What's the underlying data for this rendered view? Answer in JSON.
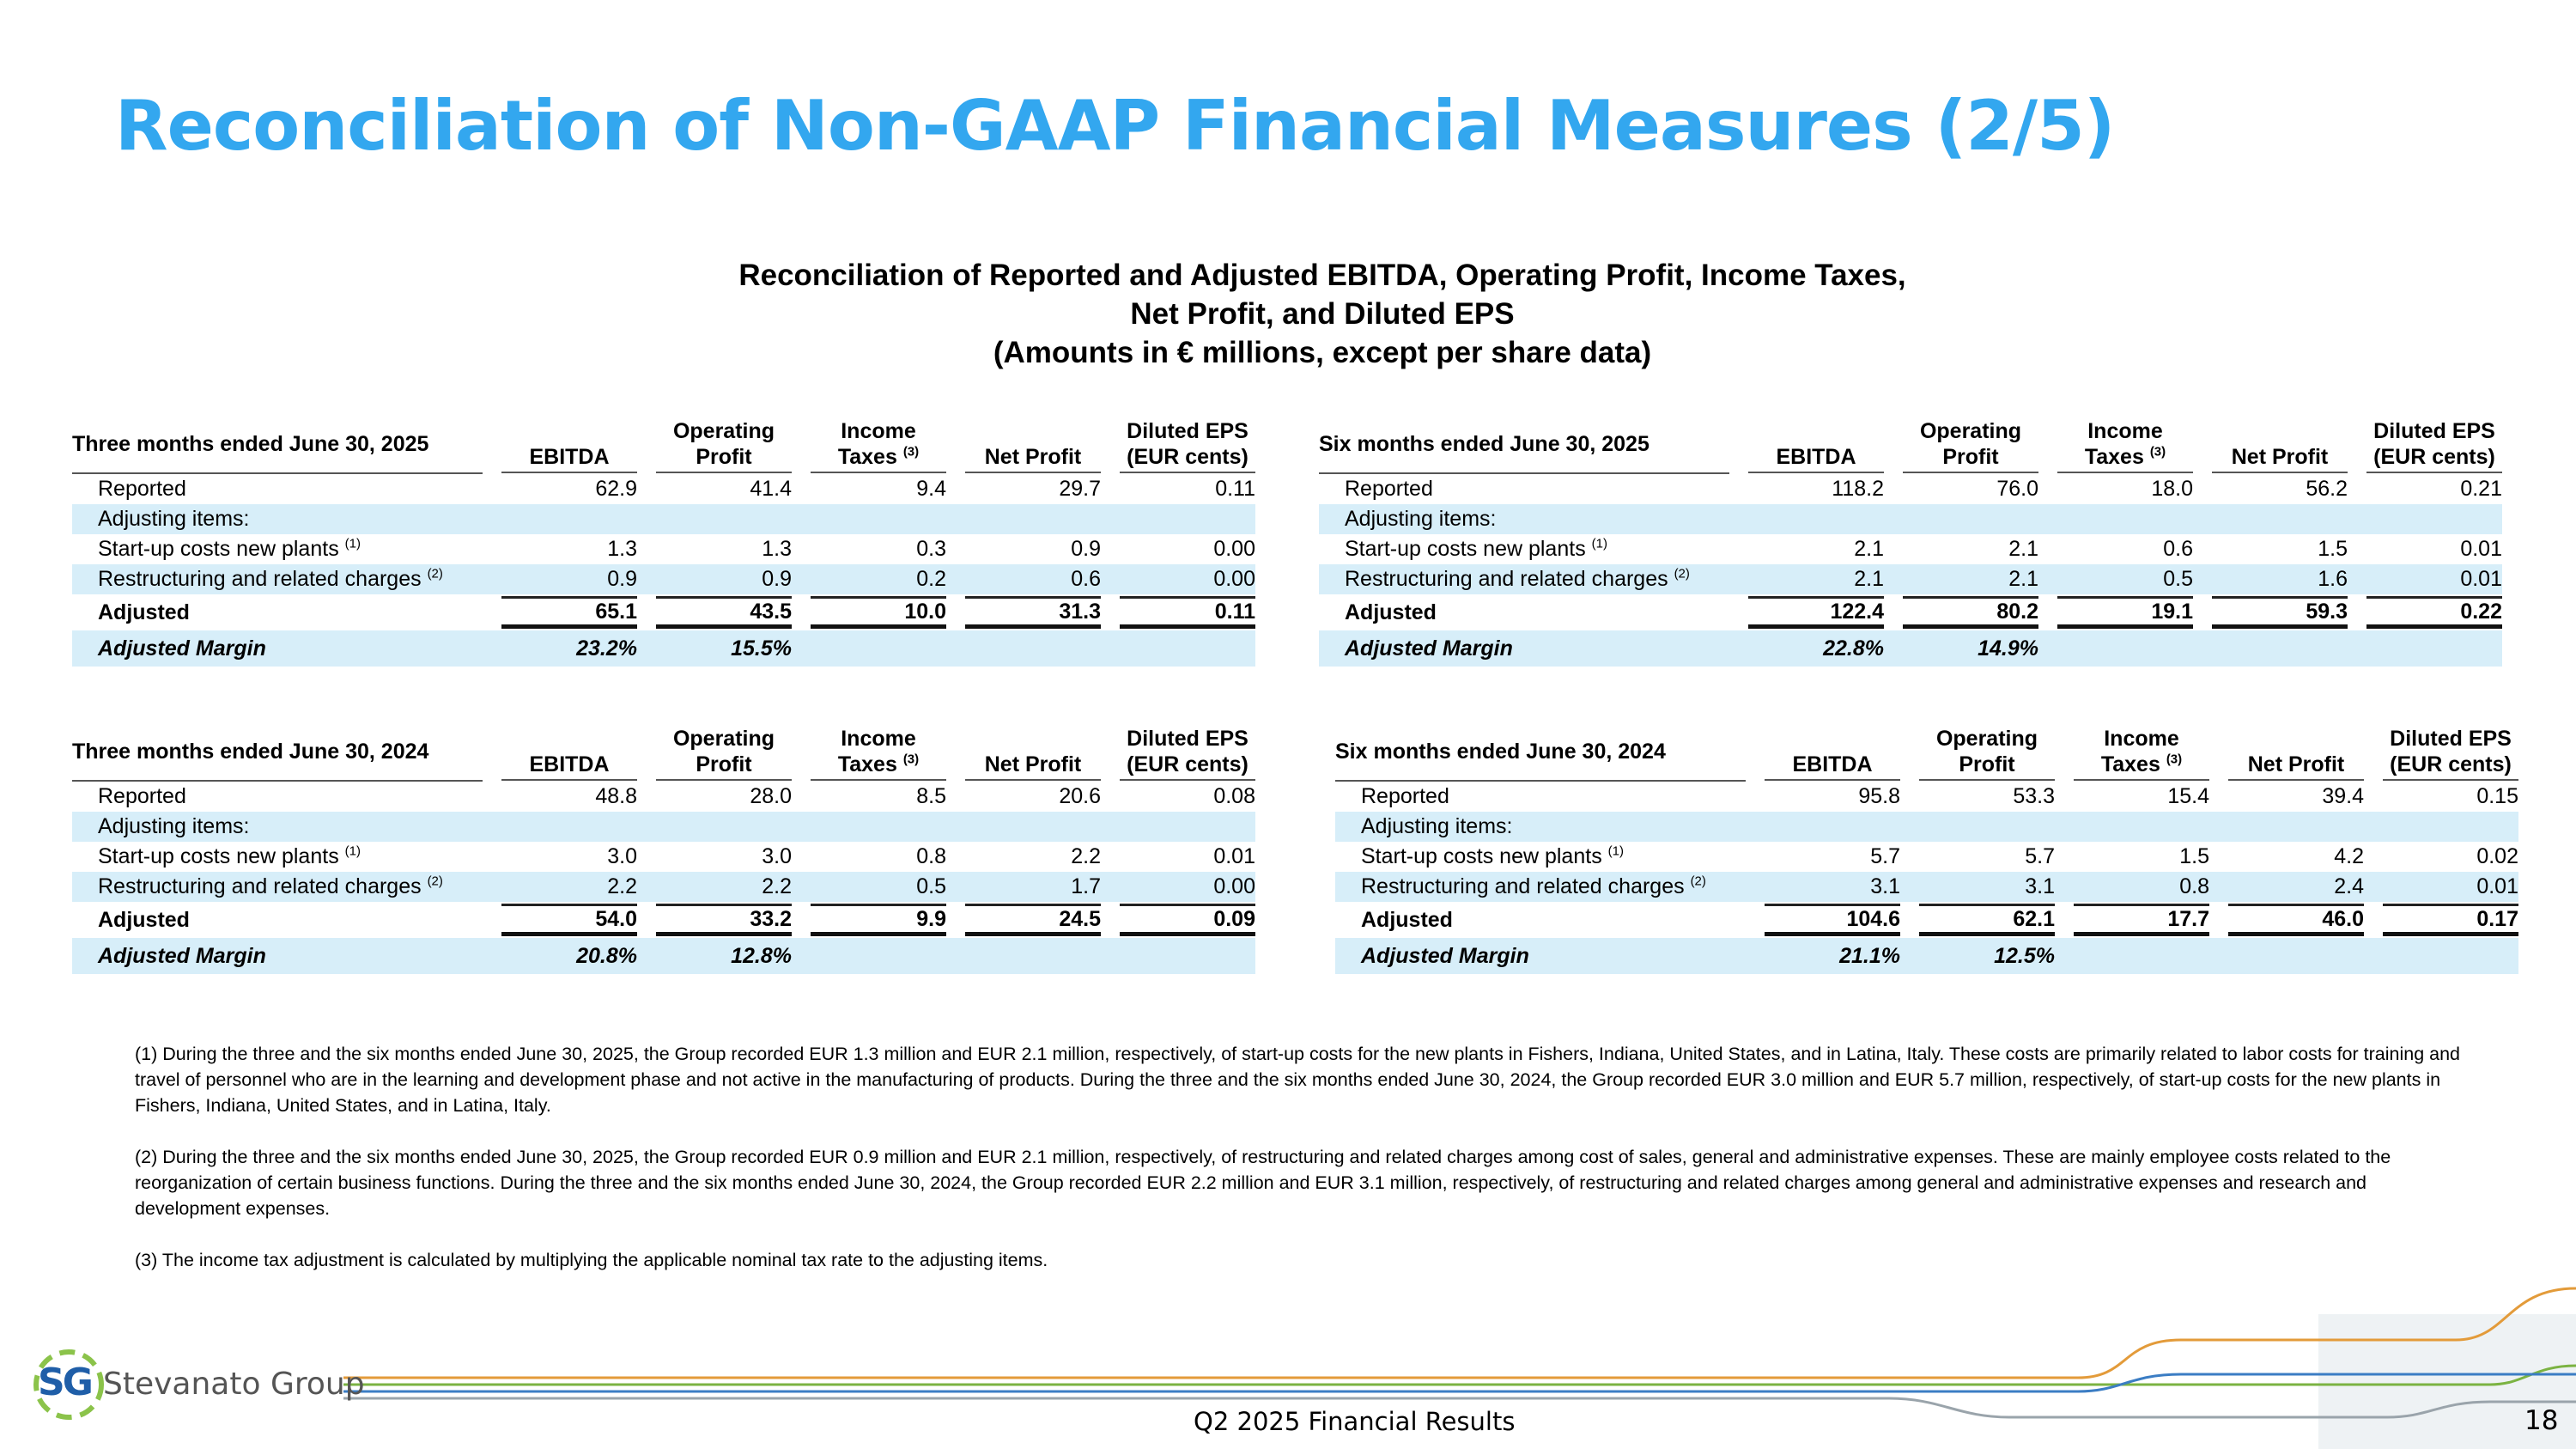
{
  "header": {
    "title": "Reconciliation of Non-GAAP Financial Measures (2/5)"
  },
  "subtitle": [
    "Reconciliation of Reported and Adjusted EBITDA, Operating Profit, Income Taxes,",
    "Net Profit, and Diluted EPS",
    "(Amounts in € millions, except per share data)"
  ],
  "tables": [
    {
      "title": "Three months ended June 30, 2025",
      "columns": [
        {
          "label": "EBITDA"
        },
        {
          "label": "Operating Profit"
        },
        {
          "label": "Income Taxes",
          "note": "(3)"
        },
        {
          "label": "Net Profit"
        },
        {
          "label": "Diluted EPS (EUR cents)"
        }
      ],
      "rows": [
        {
          "label": "Reported",
          "values": [
            "62.9",
            "41.4",
            "9.4",
            "29.7",
            "0.11"
          ]
        },
        {
          "label": "Adjusting items:",
          "values": []
        },
        {
          "label": "Start-up costs new plants",
          "note": "(1)",
          "values": [
            "1.3",
            "1.3",
            "0.3",
            "0.9",
            "0.00"
          ]
        },
        {
          "label": "Restructuring and related charges",
          "note": "(2)",
          "values": [
            "0.9",
            "0.9",
            "0.2",
            "0.6",
            "0.00"
          ]
        },
        {
          "label": "Adjusted",
          "values": [
            "65.1",
            "43.5",
            "10.0",
            "31.3",
            "0.11"
          ]
        },
        {
          "label": "Adjusted Margin",
          "values": [
            "23.2%",
            "15.5%"
          ]
        }
      ]
    },
    {
      "title": "Six months ended June 30, 2025",
      "columns": [
        {
          "label": "EBITDA"
        },
        {
          "label": "Operating Profit"
        },
        {
          "label": "Income Taxes",
          "note": "(3)"
        },
        {
          "label": "Net Profit"
        },
        {
          "label": "Diluted EPS (EUR cents)"
        }
      ],
      "rows": [
        {
          "label": "Reported",
          "values": [
            "118.2",
            "76.0",
            "18.0",
            "56.2",
            "0.21"
          ]
        },
        {
          "label": "Adjusting items:",
          "values": []
        },
        {
          "label": "Start-up costs new plants",
          "note": "(1)",
          "values": [
            "2.1",
            "2.1",
            "0.6",
            "1.5",
            "0.01"
          ]
        },
        {
          "label": "Restructuring and related charges",
          "note": "(2)",
          "values": [
            "2.1",
            "2.1",
            "0.5",
            "1.6",
            "0.01"
          ]
        },
        {
          "label": "Adjusted",
          "values": [
            "122.4",
            "80.2",
            "19.1",
            "59.3",
            "0.22"
          ]
        },
        {
          "label": "Adjusted Margin",
          "values": [
            "22.8%",
            "14.9%"
          ]
        }
      ]
    },
    {
      "title": "Three months ended June 30, 2024",
      "columns": [
        {
          "label": "EBITDA"
        },
        {
          "label": "Operating Profit"
        },
        {
          "label": "Income Taxes",
          "note": "(3)"
        },
        {
          "label": "Net Profit"
        },
        {
          "label": "Diluted EPS (EUR cents)"
        }
      ],
      "rows": [
        {
          "label": "Reported",
          "values": [
            "48.8",
            "28.0",
            "8.5",
            "20.6",
            "0.08"
          ]
        },
        {
          "label": "Adjusting items:",
          "values": []
        },
        {
          "label": "Start-up costs new plants",
          "note": "(1)",
          "values": [
            "3.0",
            "3.0",
            "0.8",
            "2.2",
            "0.01"
          ]
        },
        {
          "label": "Restructuring and related charges",
          "note": "(2)",
          "values": [
            "2.2",
            "2.2",
            "0.5",
            "1.7",
            "0.00"
          ]
        },
        {
          "label": "Adjusted",
          "values": [
            "54.0",
            "33.2",
            "9.9",
            "24.5",
            "0.09"
          ]
        },
        {
          "label": "Adjusted Margin",
          "values": [
            "20.8%",
            "12.8%"
          ]
        }
      ]
    },
    {
      "title": "Six months ended June 30, 2024",
      "columns": [
        {
          "label": "EBITDA"
        },
        {
          "label": "Operating Profit"
        },
        {
          "label": "Income Taxes",
          "note": "(3)"
        },
        {
          "label": "Net Profit"
        },
        {
          "label": "Diluted EPS (EUR cents)"
        }
      ],
      "rows": [
        {
          "label": "Reported",
          "values": [
            "95.8",
            "53.3",
            "15.4",
            "39.4",
            "0.15"
          ]
        },
        {
          "label": "Adjusting items:",
          "values": []
        },
        {
          "label": "Start-up costs new plants",
          "note": "(1)",
          "values": [
            "5.7",
            "5.7",
            "1.5",
            "4.2",
            "0.02"
          ]
        },
        {
          "label": "Restructuring and related charges",
          "note": "(2)",
          "values": [
            "3.1",
            "3.1",
            "0.8",
            "2.4",
            "0.01"
          ]
        },
        {
          "label": "Adjusted",
          "values": [
            "104.6",
            "62.1",
            "17.7",
            "46.0",
            "0.17"
          ]
        },
        {
          "label": "Adjusted Margin",
          "values": [
            "21.1%",
            "12.5%"
          ]
        }
      ]
    }
  ],
  "footnotes": [
    "(1) During the three and the six months ended June 30, 2025, the Group recorded EUR 1.3 million and EUR 2.1 million, respectively, of start-up costs for the new plants in Fishers, Indiana, United States, and in Latina, Italy. These costs are primarily related to labor costs for training and travel of personnel who are in the learning and development phase and not active in the manufacturing of products. During the three and the six months ended June 30, 2024, the Group recorded EUR 3.0 million and EUR 5.7 million, respectively, of start-up costs for the new plants in Fishers, Indiana, United States, and in Latina, Italy.",
    "(2) During the three and the six months ended June 30, 2025, the Group recorded EUR 0.9 million and EUR 2.1 million, respectively, of restructuring and related charges among cost of sales, general and administrative expenses. These are mainly employee costs related to the reorganization of certain business functions. During the three and the six months ended June 30, 2024, the Group recorded EUR 2.2 million and EUR 3.1 million, respectively, of restructuring and related charges among general and administrative expenses and research and development expenses.",
    "(3) The income tax adjustment is calculated by multiplying the applicable nominal tax rate to the adjusting items."
  ],
  "footer": {
    "logo_mark": "SG",
    "logo_text": "Stevanato Group",
    "center": "Q2 2025 Financial Results",
    "page": "18"
  }
}
